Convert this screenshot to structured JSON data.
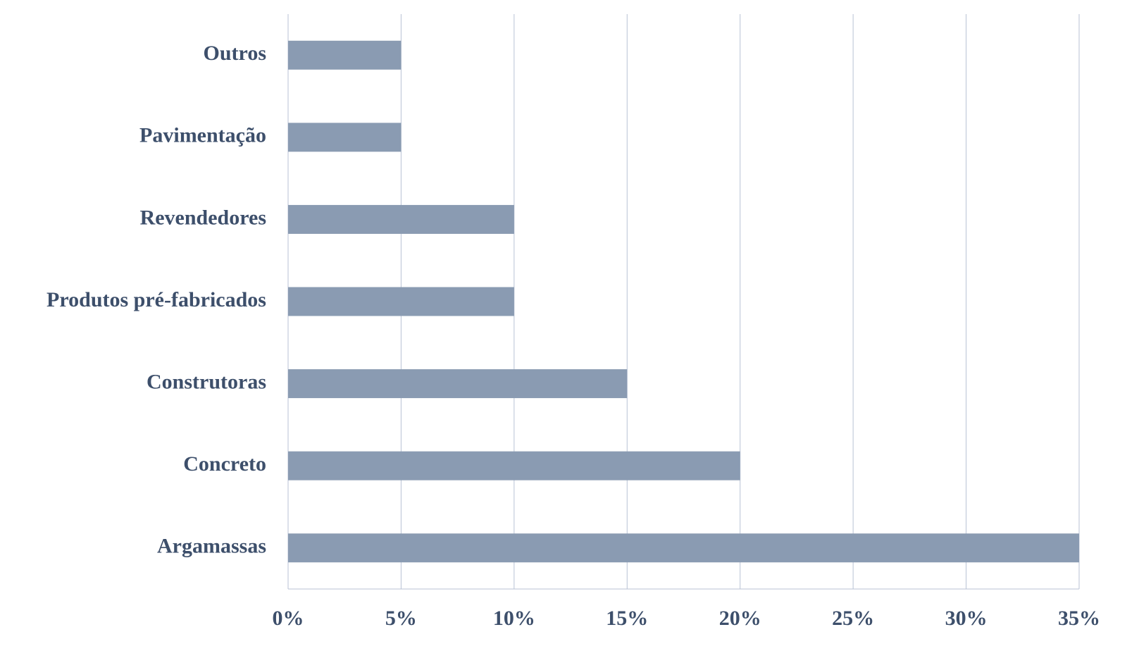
{
  "chart_data": {
    "type": "barh",
    "categories": [
      "Outros",
      "Pavimentação",
      "Revendedores",
      "Produtos pré-fabricados",
      "Construtoras",
      "Concreto",
      "Argamassas"
    ],
    "values": [
      5,
      5,
      10,
      10,
      15,
      20,
      35
    ],
    "color": "#8a9bb2",
    "xlim": [
      0,
      35
    ],
    "xticks": [
      {
        "value": 0,
        "label": "0%"
      },
      {
        "value": 5,
        "label": "5%"
      },
      {
        "value": 10,
        "label": "10%"
      },
      {
        "value": 15,
        "label": "15%"
      },
      {
        "value": 20,
        "label": "20%"
      },
      {
        "value": 25,
        "label": "25%"
      },
      {
        "value": 30,
        "label": "30%"
      },
      {
        "value": 35,
        "label": "35%"
      }
    ],
    "grid": true
  }
}
